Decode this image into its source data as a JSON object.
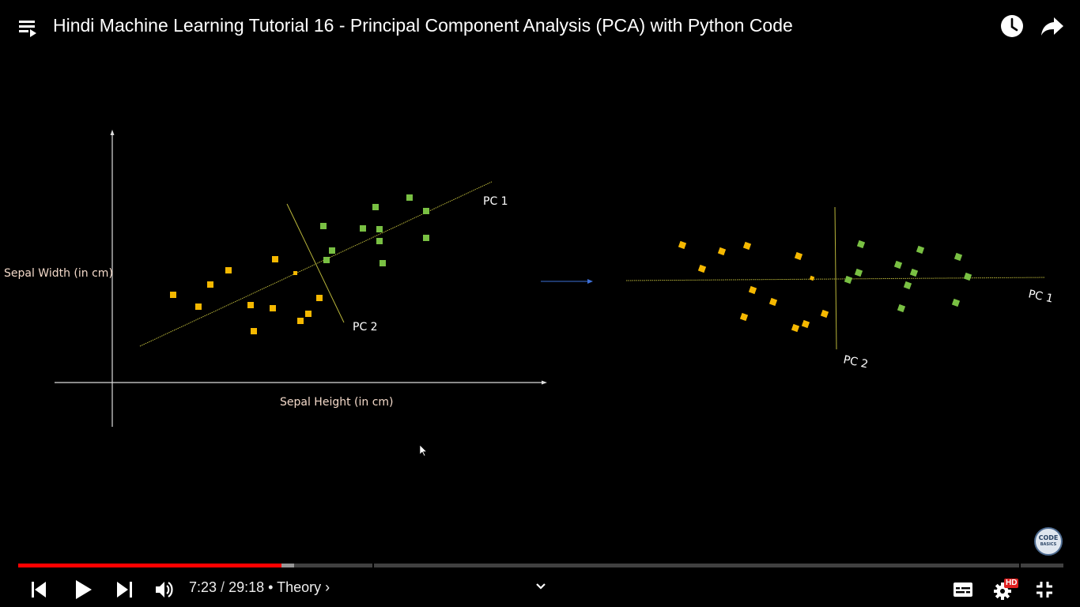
{
  "window": {
    "title": "Hindi Machine Learning Tutorial 16 - Principal Component Analysis (PCA) with Python Code"
  },
  "colors": {
    "progress_played": "#ff0000",
    "class_a_points": "#f5b800",
    "class_b_points": "#79c043",
    "pc_line": "#b9b53a",
    "axis_label": "#f3d9c9",
    "arrow": "#3d6fd6",
    "hd_badge": "#e02020"
  },
  "icons": {
    "playlist": "playlist-icon",
    "watch_later": "clock-icon",
    "share": "share-arrow-icon",
    "previous": "skip-previous-icon",
    "play": "play-icon",
    "next": "skip-next-icon",
    "volume": "volume-icon",
    "chapter_chevron": "chevron-right-icon",
    "expand": "chevron-down-icon",
    "subtitles": "subtitles-icon",
    "settings": "gear-icon",
    "exit_fullscreen": "exit-fullscreen-icon"
  },
  "slide": {
    "left_plot": {
      "ylabel": "Sepal Width (in cm)",
      "xlabel": "Sepal Height (in cm)",
      "pc1_label": "PC 1",
      "pc2_label": "PC 2"
    },
    "right_plot": {
      "pc1_label": "PC 1",
      "pc2_label": "PC 2"
    }
  },
  "logo": {
    "line1": "CODE",
    "line2": "BASICS"
  },
  "player": {
    "current_time": "7:23",
    "separator": " / ",
    "duration": "29:18",
    "chapter_prefix": "• ",
    "chapter": "Theory",
    "chapter_suffix": " ›",
    "progress_fraction": 0.2521,
    "buffer_fraction": 0.2638,
    "hd_label": "HD"
  }
}
